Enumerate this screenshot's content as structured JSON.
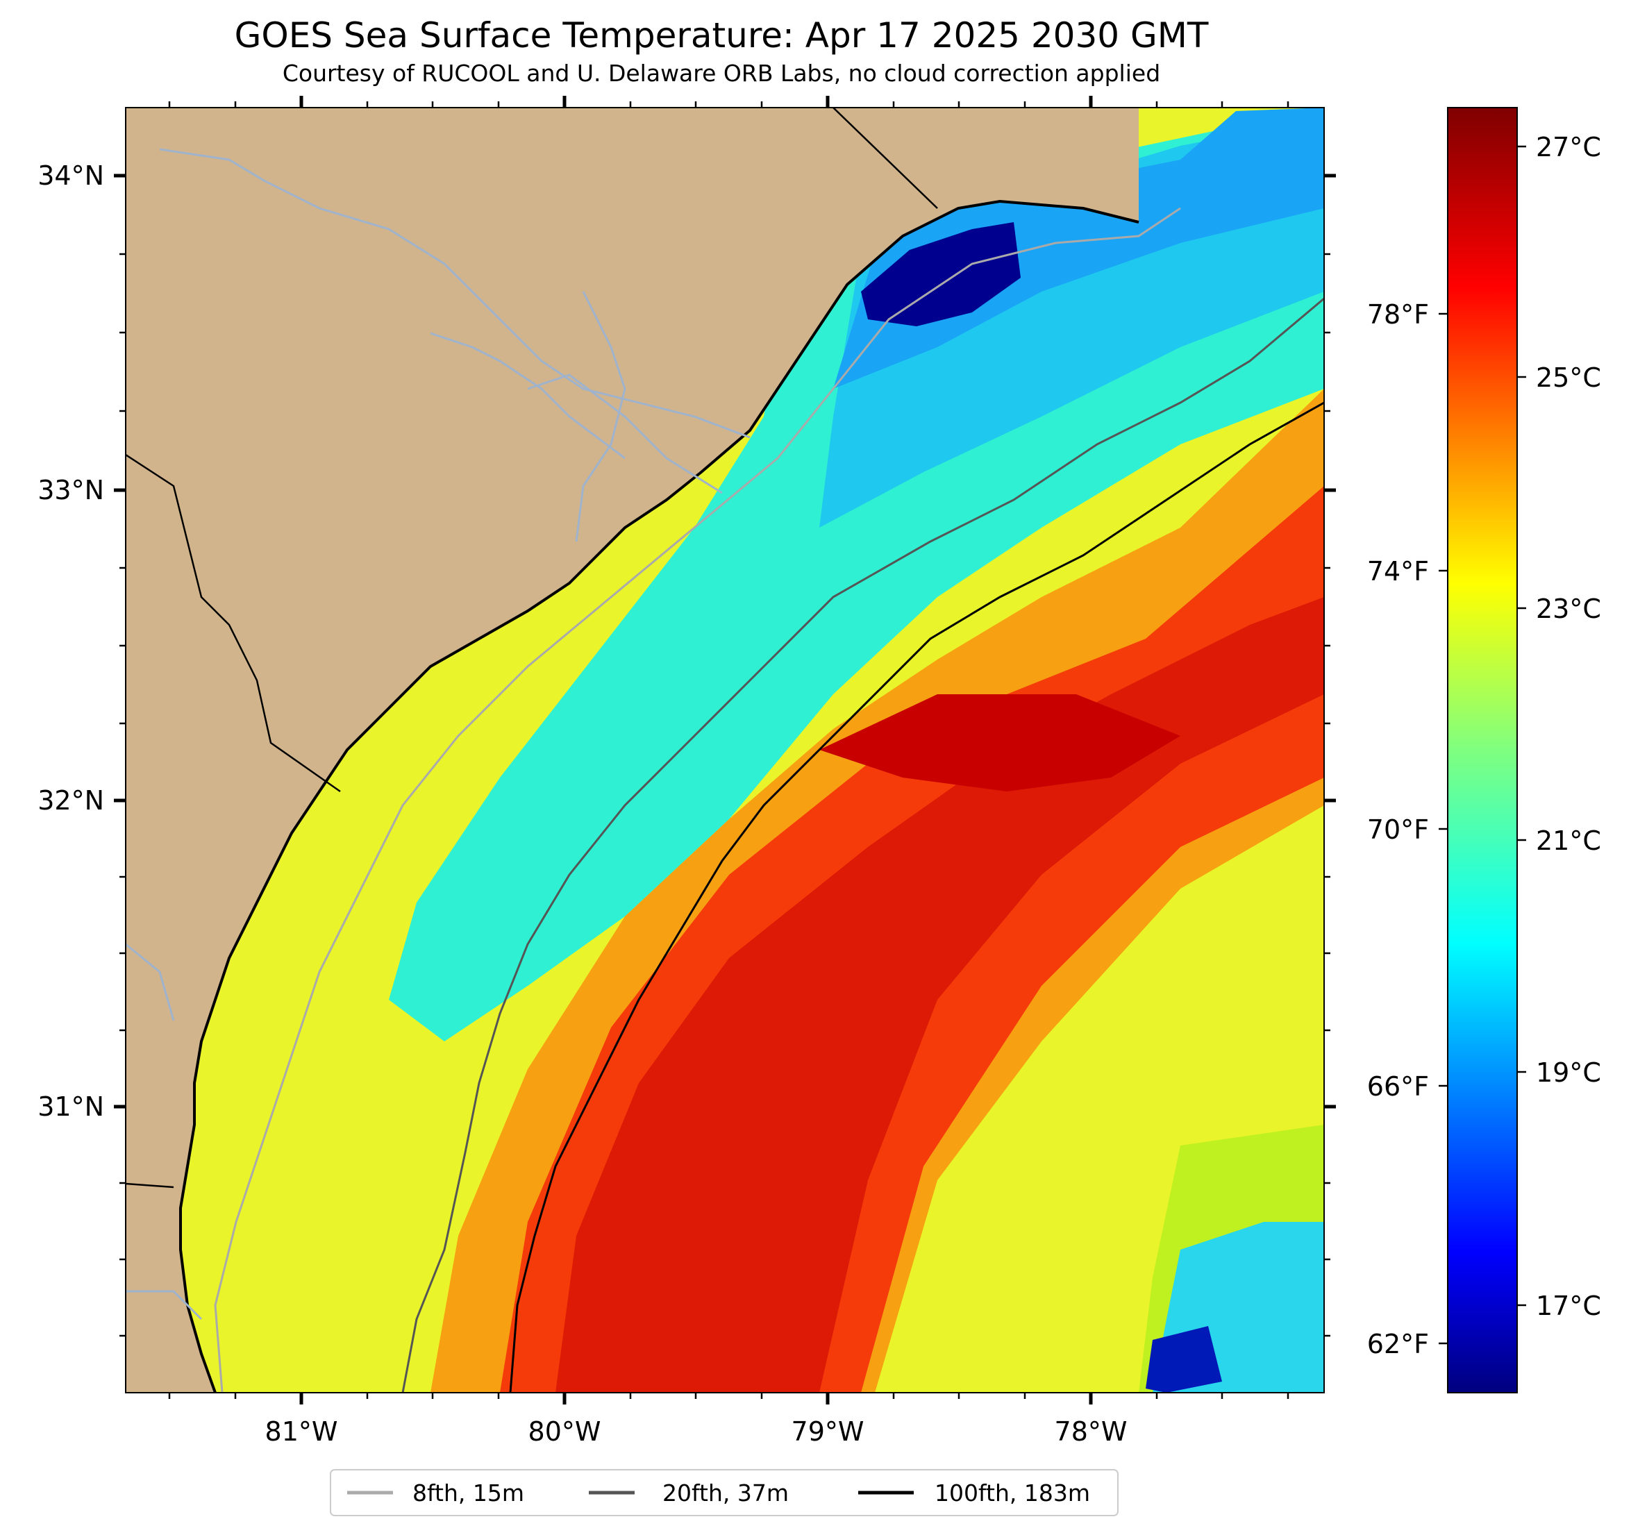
{
  "title": "GOES Sea Surface Temperature: Apr 17 2025 2030 GMT",
  "subtitle": "Courtesy of RUCOOL and U. Delaware ORB Labs, no cloud correction applied",
  "map": {
    "lat_labels": [
      "34°N",
      "33°N",
      "32°N",
      "31°N"
    ],
    "lon_labels": [
      "81°W",
      "80°W",
      "79°W",
      "78°W"
    ],
    "colors": {
      "land": "#d2b48c",
      "coast": "#000000",
      "rivers": "#9fb3cc"
    }
  },
  "colorbar": {
    "colormap": "jet",
    "celsius_labels": [
      "27°C",
      "25°C",
      "23°C",
      "21°C",
      "19°C",
      "17°C"
    ],
    "fahrenheit_labels": [
      "78°F",
      "74°F",
      "70°F",
      "66°F",
      "62°F"
    ]
  },
  "legend": {
    "items": [
      {
        "label": "8fth, 15m",
        "color": "#aaaaaa"
      },
      {
        "label": "20fth, 37m",
        "color": "#555555"
      },
      {
        "label": "100fth, 183m",
        "color": "#000000"
      }
    ]
  }
}
